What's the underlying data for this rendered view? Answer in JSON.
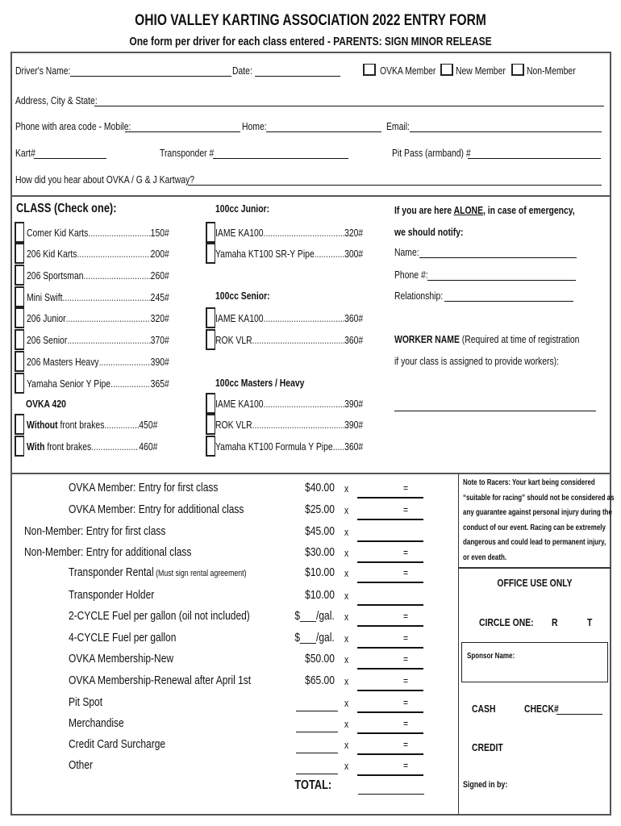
{
  "title": "OHIO VALLEY KARTING ASSOCIATION 2022 ENTRY FORM",
  "subtitle": "One form per driver for each class entered - PARENTS: SIGN MINOR RELEASE",
  "driver": {
    "name_label": "Driver's Name:",
    "date_label": "Date:",
    "member_options": [
      "OVKA Member",
      "New Member",
      "Non-Member"
    ],
    "address_label": "Address, City & State:",
    "mobile_label": "Phone with area code - Mobile:",
    "home_label": "Home:",
    "email_label": "Email:",
    "kart_label": "Kart#",
    "transponder_label": "Transponder #",
    "pitpass_label": "Pit Pass (armband) #",
    "hear_label": "How did you hear about OVKA / G & J Kartway?"
  },
  "classes": {
    "header": "CLASS (Check one):",
    "left": [
      {
        "name": "Comer Kid Karts",
        "weight": "150#"
      },
      {
        "name": "206 Kid Karts",
        "weight": "200#"
      },
      {
        "name": "206 Sportsman",
        "weight": "260#"
      },
      {
        "name": "Mini Swift",
        "weight": "245#"
      },
      {
        "name": "206 Junior",
        "weight": "320#"
      },
      {
        "name": "206 Senior",
        "weight": "370#"
      },
      {
        "name": "206 Masters Heavy",
        "weight": "390#"
      },
      {
        "name": "Yamaha Senior Y Pipe",
        "weight": "365#"
      }
    ],
    "ovka420": {
      "header": "OVKA 420",
      "items": [
        {
          "bold": "Without",
          "name": " front brakes",
          "weight": "450#"
        },
        {
          "bold": "With",
          "name": " front brakes",
          "weight": "460#"
        }
      ]
    },
    "groups": [
      {
        "header": "100cc Junior:",
        "items": [
          {
            "name": "IAME KA100",
            "weight": "320#"
          },
          {
            "name": "Yamaha KT100 SR-Y Pipe",
            "weight": "300#"
          }
        ]
      },
      {
        "header": "100cc Senior:",
        "items": [
          {
            "name": "IAME KA100",
            "weight": "360#"
          },
          {
            "name": "ROK VLR",
            "weight": "360#"
          }
        ]
      },
      {
        "header": "100cc Masters / Heavy",
        "items": [
          {
            "name": "IAME KA100",
            "weight": "390#"
          },
          {
            "name": "ROK VLR",
            "weight": "390#"
          },
          {
            "name": "Yamaha KT100 Formula Y Pipe",
            "weight": "360#"
          }
        ]
      }
    ]
  },
  "emergency": {
    "line1_pre": "If you are here ",
    "line1_em": "ALONE",
    "line1_post": ", in case of emergency,",
    "line2": "we should notify:",
    "name_label": "Name:",
    "phone_label": "Phone #:",
    "relationship_label": "Relationship:",
    "worker_bold": "WORKER NAME",
    "worker_rest": " (Required at time of registration",
    "worker_line2": "if your class is assigned to provide workers):"
  },
  "fees": [
    {
      "label": "OVKA Member: Entry for first class",
      "price": "$40.00",
      "eq": "="
    },
    {
      "label": "OVKA Member: Entry for additional class",
      "price": "$25.00",
      "eq": "="
    },
    {
      "label": "Non-Member: Entry for first class",
      "price": "$45.00",
      "eq": "",
      "outdent": true
    },
    {
      "label": "Non-Member: Entry for additional class",
      "price": "$30.00",
      "eq": "=",
      "outdent": true
    },
    {
      "label": "Transponder Rental",
      "note": " (Must sign rental agreement)",
      "price": "$10.00",
      "eq": "="
    },
    {
      "label": "Transponder Holder",
      "price": "$10.00",
      "eq": ""
    },
    {
      "label": "2-CYCLE Fuel per gallon (oil not included)",
      "price": "$___/gal.",
      "eq": "="
    },
    {
      "label": "4-CYCLE Fuel per gallon",
      "price": "$___/gal.",
      "eq": "="
    },
    {
      "label": "OVKA Membership-New",
      "price": "$50.00",
      "eq": "="
    },
    {
      "label": "OVKA Membership-Renewal after April 1st",
      "price": "$65.00",
      "eq": "="
    },
    {
      "label": "Pit Spot",
      "price": "",
      "eq": "="
    },
    {
      "label": "Merchandise",
      "price": "",
      "eq": "="
    },
    {
      "label": "Credit Card Surcharge",
      "price": "",
      "eq": "="
    },
    {
      "label": "Other",
      "price": "",
      "eq": "="
    }
  ],
  "times": "x",
  "total_label": "TOTAL:",
  "note": [
    "Note to Racers:  Your kart being considered",
    "“suitable for racing” should not be considered as",
    "any guarantee against personal injury during the",
    "conduct of our event.  Racing can be extremely",
    "dangerous and could lead to permanent injury,",
    "or even death."
  ],
  "office": {
    "header": "OFFICE USE ONLY",
    "circle_label": "CIRCLE ONE:",
    "opt_r": "R",
    "opt_t": "T",
    "sponsor_label": "Sponsor Name:",
    "cash": "CASH",
    "check": "CHECK#",
    "credit": "CREDIT",
    "signed": "Signed in by:"
  }
}
